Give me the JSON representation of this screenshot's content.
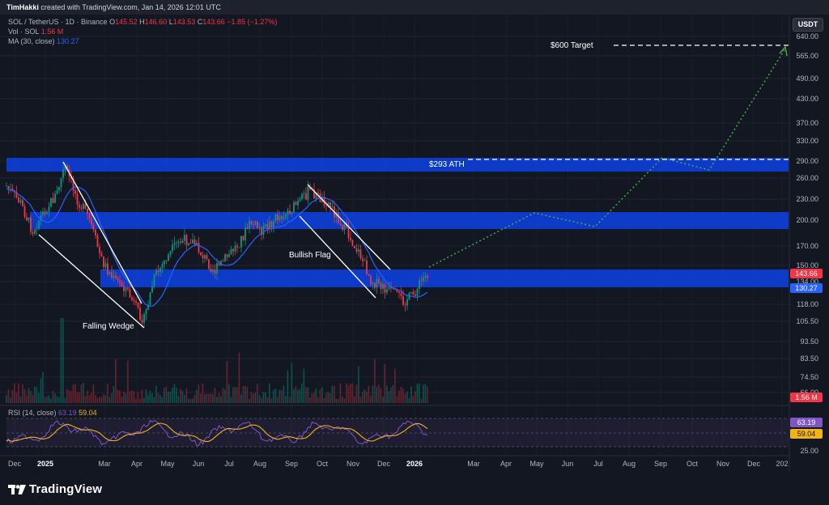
{
  "header": {
    "author": "TimHakki",
    "created_text": " created with TradingView.com, Jan 14, 2026 12:01 UTC"
  },
  "legend": {
    "symbol": "SOL / TetherUS · 1D · Binance",
    "o_label": "O",
    "o": "145.52",
    "h_label": "H",
    "h": "146.60",
    "l_label": "L",
    "l": "143.53",
    "c_label": "C",
    "c": "143.66",
    "change": "−1.85 (−1.27%)",
    "vol_label": "Vol · SOL",
    "vol": "1.56 M",
    "ma_label": "MA (30, close)",
    "ma": "130.27",
    "rsi_label": "RSI (14, close)",
    "rsi": "63.19",
    "rsi_ma": "59.04"
  },
  "currency_button": "USDT",
  "price_tags": {
    "price": "143.66",
    "ma": "130.27",
    "vol": "1.56 M",
    "rsi": "63.19",
    "rsi_ma": "59.04"
  },
  "annotations": {
    "target": "$600 Target",
    "ath": "$293 ATH",
    "bullish_flag": "Bullish Flag",
    "falling_wedge": "Falling Wedge"
  },
  "brand": "TradingView",
  "colors": {
    "background": "#131722",
    "zone": "#0d3fd6",
    "up": "#089981",
    "down": "#f23645",
    "ma": "#2962ff",
    "rsi": "#7e57c2",
    "rsi_ma": "#f2b21a",
    "projection": "#4caf50"
  },
  "chart_data": {
    "type": "line",
    "price_axis_ticks": [
      "640.00",
      "565.00",
      "490.00",
      "430.00",
      "370.00",
      "330.00",
      "290.00",
      "260.00",
      "230.00",
      "200.00",
      "170.00",
      "150.00",
      "134.00",
      "118.00",
      "105.50",
      "93.50",
      "83.50",
      "74.50",
      "66.00"
    ],
    "rsi_axis_ticks": [
      "25.00"
    ],
    "time_axis_labels": [
      "Dec",
      "2025",
      "Mar",
      "Apr",
      "May",
      "Jun",
      "Jul",
      "Aug",
      "Sep",
      "Oct",
      "Nov",
      "Dec",
      "2026",
      "Mar",
      "Apr",
      "May",
      "Jun",
      "Jul",
      "Aug",
      "Sep",
      "Oct",
      "Nov",
      "Dec",
      "202"
    ],
    "projection_path_prices": [
      143.66,
      210,
      190,
      293,
      272,
      600
    ],
    "last_price": 143.66,
    "ma_value": 130.27
  }
}
